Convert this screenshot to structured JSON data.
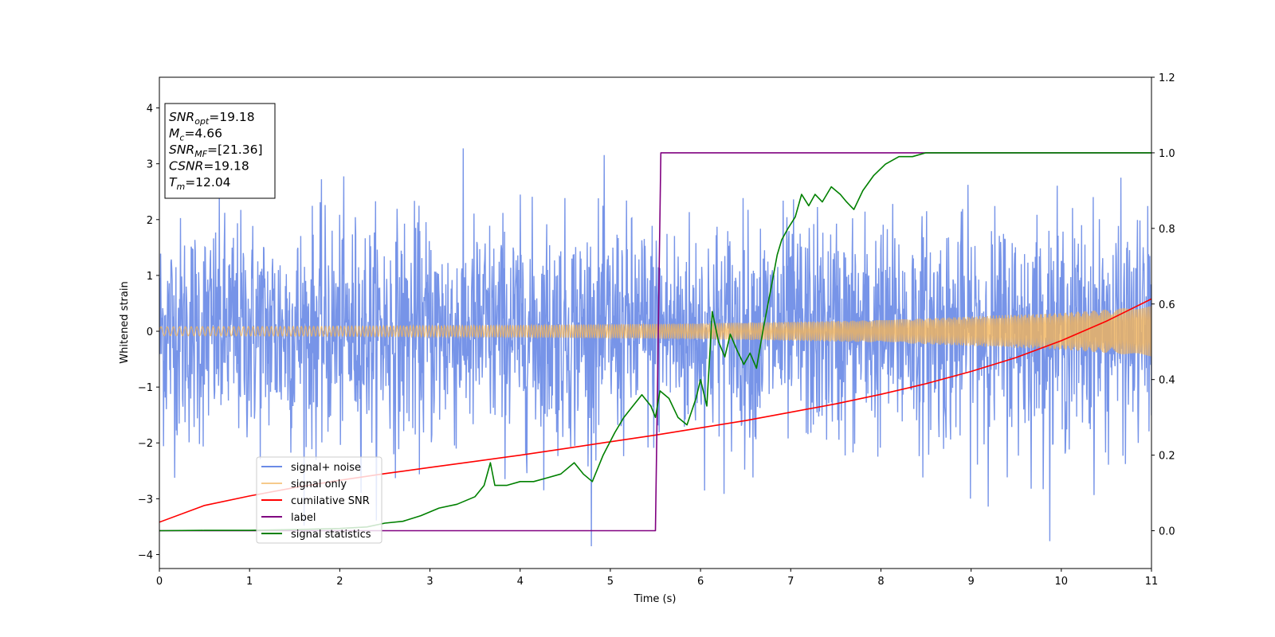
{
  "chart_data": {
    "type": "line",
    "title": "",
    "xlabel": "Time (s)",
    "ylabel": "Whitened strain",
    "xlim": [
      0,
      11
    ],
    "ylim": [
      -4.25,
      4.55
    ],
    "y2lim": [
      -0.1,
      1.2
    ],
    "xticks": [
      0,
      1,
      2,
      3,
      4,
      5,
      6,
      7,
      8,
      9,
      10,
      11
    ],
    "yticks": [
      -4,
      -3,
      -2,
      -1,
      0,
      1,
      2,
      3,
      4
    ],
    "y2ticks": [
      "0.0",
      "0.2",
      "0.4",
      "0.6",
      "0.8",
      "1.0",
      "1.2"
    ],
    "grid": false,
    "legend_position": "lower-left",
    "colors": {
      "signal_noise": "#6b8be6",
      "signal_only": "#f2b45a",
      "cumulative_snr": "#ff0000",
      "label": "#800080",
      "signal_statistics": "#008000"
    },
    "annotation": {
      "lines": [
        {
          "main": "SNR",
          "sub": "opt",
          "rest": "=19.18"
        },
        {
          "main": "M",
          "sub": "c",
          "rest": "=4.66"
        },
        {
          "main": "SNR",
          "sub": "MF",
          "rest": "=[21.36]"
        },
        {
          "main": "CSNR",
          "sub": "",
          "rest": "=19.18"
        },
        {
          "main": "T",
          "sub": "m",
          "rest": "=12.04"
        }
      ]
    },
    "series": [
      {
        "name": "signal+ noise",
        "axis": "left",
        "kind": "noise",
        "mean": 0,
        "typical_spread": 1.6,
        "extreme_range": [
          -3.85,
          4.2
        ]
      },
      {
        "name": "signal only",
        "axis": "left",
        "kind": "chirp",
        "amplitude_x": [
          0,
          2,
          4,
          6,
          8,
          10,
          11
        ],
        "amplitude_y": [
          0.08,
          0.09,
          0.11,
          0.14,
          0.2,
          0.33,
          0.45
        ]
      },
      {
        "name": "cumilative SNR",
        "axis": "left",
        "x": [
          0,
          0.5,
          1,
          1.5,
          2,
          2.5,
          3,
          3.5,
          4,
          4.5,
          5,
          5.5,
          6,
          6.5,
          7,
          7.5,
          8,
          8.5,
          9,
          9.5,
          10,
          10.5,
          11
        ],
        "y": [
          -3.42,
          -3.12,
          -2.95,
          -2.8,
          -2.67,
          -2.55,
          -2.44,
          -2.33,
          -2.22,
          -2.1,
          -1.98,
          -1.86,
          -1.73,
          -1.6,
          -1.45,
          -1.3,
          -1.13,
          -0.94,
          -0.72,
          -0.47,
          -0.17,
          0.18,
          0.58
        ]
      },
      {
        "name": "label",
        "axis": "right",
        "x": [
          0,
          5.5,
          5.56,
          11
        ],
        "y": [
          0,
          0,
          1,
          1
        ]
      },
      {
        "name": "signal statistics",
        "axis": "right",
        "x": [
          0,
          0.5,
          1,
          1.5,
          2,
          2.3,
          2.5,
          2.7,
          2.9,
          3.1,
          3.3,
          3.5,
          3.6,
          3.67,
          3.72,
          3.85,
          4.0,
          4.15,
          4.3,
          4.45,
          4.6,
          4.7,
          4.8,
          4.92,
          5.05,
          5.15,
          5.25,
          5.35,
          5.45,
          5.5,
          5.55,
          5.65,
          5.75,
          5.85,
          5.95,
          6.0,
          6.07,
          6.13,
          6.2,
          6.27,
          6.33,
          6.4,
          6.48,
          6.55,
          6.62,
          6.7,
          6.78,
          6.85,
          6.9,
          6.97,
          7.05,
          7.12,
          7.2,
          7.27,
          7.35,
          7.45,
          7.55,
          7.62,
          7.7,
          7.8,
          7.92,
          8.05,
          8.2,
          8.35,
          8.5,
          8.7,
          9.0,
          9.5,
          10,
          10.5,
          11
        ],
        "y": [
          0,
          0.001,
          0.001,
          0.003,
          0.006,
          0.01,
          0.02,
          0.025,
          0.04,
          0.06,
          0.07,
          0.09,
          0.12,
          0.18,
          0.12,
          0.12,
          0.13,
          0.13,
          0.14,
          0.15,
          0.18,
          0.15,
          0.13,
          0.2,
          0.26,
          0.3,
          0.33,
          0.36,
          0.33,
          0.3,
          0.37,
          0.35,
          0.3,
          0.28,
          0.35,
          0.4,
          0.33,
          0.58,
          0.5,
          0.46,
          0.52,
          0.48,
          0.44,
          0.47,
          0.43,
          0.54,
          0.64,
          0.73,
          0.77,
          0.8,
          0.83,
          0.89,
          0.86,
          0.89,
          0.87,
          0.91,
          0.89,
          0.87,
          0.85,
          0.9,
          0.94,
          0.97,
          0.99,
          0.99,
          1.0,
          1.0,
          1.0,
          1.0,
          1.0,
          1.0,
          1.0
        ]
      }
    ]
  }
}
